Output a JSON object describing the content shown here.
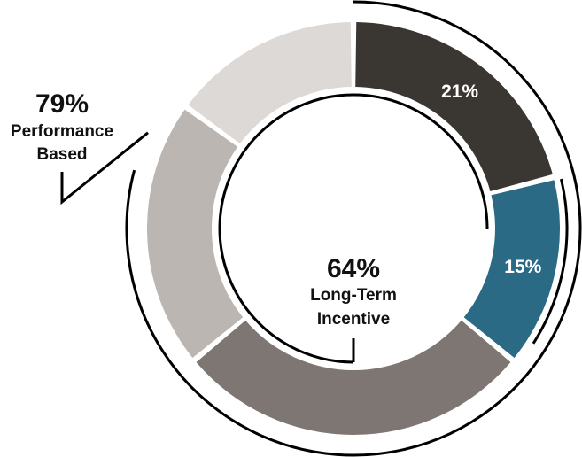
{
  "chart_data": {
    "type": "pie",
    "variant": "donut",
    "segments": [
      {
        "value": 21,
        "label": "21%",
        "color": "#3a3632"
      },
      {
        "value": 15,
        "label": "15%",
        "color": "#2b6a84"
      },
      {
        "value": 28,
        "label": "",
        "color": "#7e7673"
      },
      {
        "value": 21,
        "label": "",
        "color": "#bcb6b2"
      },
      {
        "value": 15,
        "label": "",
        "color": "#dcd9d7"
      }
    ],
    "center": {
      "value": "64%",
      "line1": "Long-Term",
      "line2": "Incentive"
    },
    "callout": {
      "value": "79%",
      "line1": "Performance",
      "line2": "Based"
    },
    "brackets": {
      "performance_based_share": 79,
      "long_term_incentive_share": 64
    }
  }
}
